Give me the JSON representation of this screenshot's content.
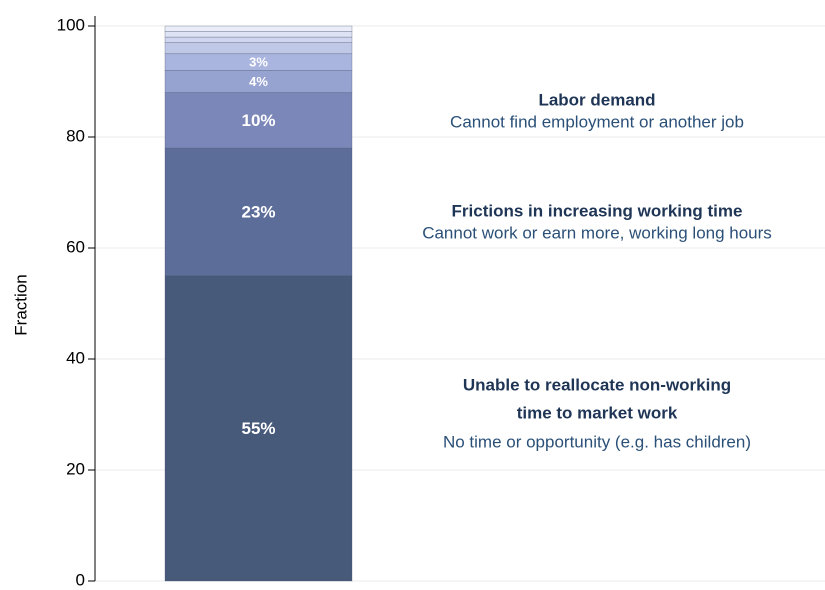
{
  "chart_data": {
    "type": "stacked_bar",
    "ylabel": "Fraction",
    "values": [
      55,
      23,
      10,
      4,
      3,
      2,
      1,
      1,
      1
    ],
    "value_labels": [
      "55%",
      "23%",
      "10%",
      "4%",
      "3%",
      null,
      null,
      null,
      null
    ],
    "colors": [
      "#475a7a",
      "#5d6d9a",
      "#7b87b8",
      "#96a2d0",
      "#a9b5de",
      "#c0c8e8",
      "#d0d6ef",
      "#dde2f4",
      "#eaedf8"
    ],
    "ylim": [
      0,
      100
    ],
    "yticks": [
      0,
      20,
      40,
      60,
      80,
      100
    ],
    "grid": true,
    "annotations": [
      {
        "title": [
          "Labor demand"
        ],
        "subtitle": "Cannot find employment or another job"
      },
      {
        "title": [
          "Frictions in increasing working time"
        ],
        "subtitle": "Cannot work or earn more, working long hours"
      },
      {
        "title": [
          "Unable to reallocate non-working",
          "time to market work"
        ],
        "subtitle": "No time or opportunity (e.g. has children)"
      }
    ]
  }
}
